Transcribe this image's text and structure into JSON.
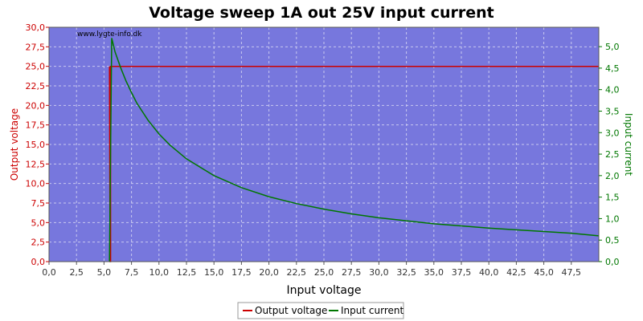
{
  "chart_data": {
    "type": "line",
    "title": "Voltage sweep 1A out 25V input current",
    "watermark": "www.lygte-info.dk",
    "xlabel": "Input voltage",
    "ylabel_left": "Output voltage",
    "ylabel_right": "Input current",
    "xlim": [
      0,
      50
    ],
    "ylim_left": [
      0,
      30
    ],
    "ylim_right": [
      0,
      5.45
    ],
    "x_ticks": [
      "0,0",
      "2,5",
      "5,0",
      "7,5",
      "10,0",
      "12,5",
      "15,0",
      "17,5",
      "20,0",
      "22,5",
      "25,0",
      "27,5",
      "30,0",
      "32,5",
      "35,0",
      "37,5",
      "40,0",
      "42,5",
      "45,0",
      "47,5"
    ],
    "y_left_ticks": [
      "0,0",
      "2,5",
      "5,0",
      "7,5",
      "10,0",
      "12,5",
      "15,0",
      "17,5",
      "20,0",
      "22,5",
      "25,0",
      "27,5",
      "30,0"
    ],
    "y_right_ticks": [
      "0,0",
      "0,5",
      "1,0",
      "1,5",
      "2,0",
      "2,5",
      "3,0",
      "3,5",
      "4,0",
      "4,5",
      "5,0"
    ],
    "grid": true,
    "legend_position": "bottom-center",
    "colors": {
      "plot_background": "#7777dd",
      "output_voltage": "#cc0000",
      "input_current": "#007700",
      "grid": "#c8c8f0"
    },
    "series": [
      {
        "name": "Output voltage",
        "axis": "left",
        "x": [
          5.5,
          5.55,
          5.6,
          5.6,
          5.7,
          6,
          10,
          20,
          30,
          40,
          50
        ],
        "values": [
          25,
          0,
          0,
          25,
          25,
          25,
          25,
          25,
          25,
          25,
          25
        ]
      },
      {
        "name": "Input current",
        "axis": "right",
        "x": [
          5.5,
          5.7,
          6,
          6.5,
          7,
          7.5,
          8,
          9,
          10,
          11,
          12.5,
          15,
          17.5,
          20,
          22.5,
          25,
          27.5,
          30,
          32.5,
          35,
          37.5,
          40,
          42.5,
          45,
          47.5,
          50
        ],
        "values": [
          0,
          5.2,
          4.88,
          4.52,
          4.2,
          3.93,
          3.68,
          3.29,
          2.97,
          2.71,
          2.39,
          2.0,
          1.72,
          1.51,
          1.35,
          1.22,
          1.11,
          1.02,
          0.95,
          0.88,
          0.83,
          0.78,
          0.74,
          0.7,
          0.66,
          0.6
        ]
      }
    ]
  }
}
